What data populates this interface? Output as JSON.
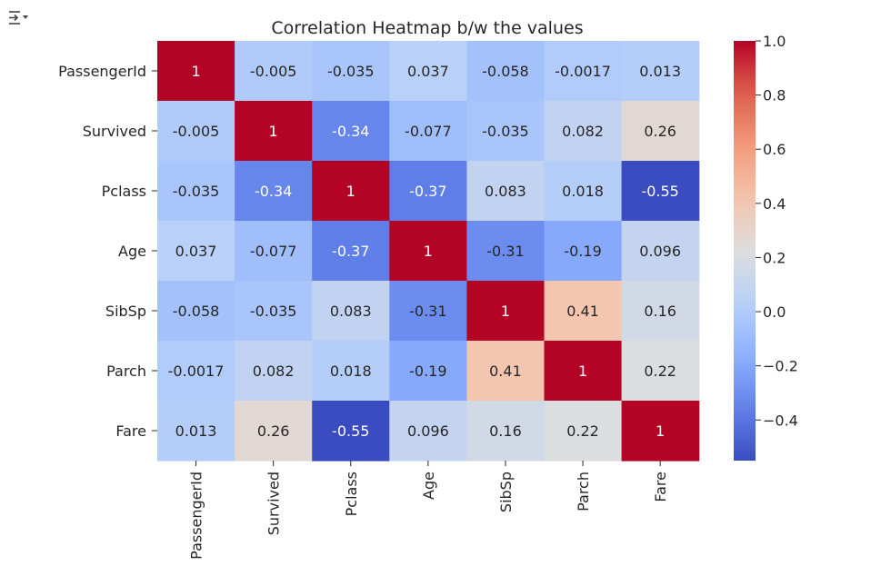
{
  "output_toolbar": {
    "icon": "output-collapse-icon"
  },
  "chart_data": {
    "type": "heatmap",
    "title": "Correlation Heatmap b/w the values",
    "xlabel": "",
    "ylabel": "",
    "rows": [
      "PassengerId",
      "Survived",
      "Pclass",
      "Age",
      "SibSp",
      "Parch",
      "Fare"
    ],
    "columns": [
      "PassengerId",
      "Survived",
      "Pclass",
      "Age",
      "SibSp",
      "Parch",
      "Fare"
    ],
    "values": [
      [
        1,
        -0.005,
        -0.035,
        0.037,
        -0.058,
        -0.0017,
        0.013
      ],
      [
        -0.005,
        1,
        -0.34,
        -0.077,
        -0.035,
        0.082,
        0.26
      ],
      [
        -0.035,
        -0.34,
        1,
        -0.37,
        0.083,
        0.018,
        -0.55
      ],
      [
        0.037,
        -0.077,
        -0.37,
        1,
        -0.31,
        -0.19,
        0.096
      ],
      [
        -0.058,
        -0.035,
        0.083,
        -0.31,
        1,
        0.41,
        0.16
      ],
      [
        -0.0017,
        0.082,
        0.018,
        -0.19,
        0.41,
        1,
        0.22
      ],
      [
        0.013,
        0.26,
        -0.55,
        0.096,
        0.16,
        0.22,
        1
      ]
    ],
    "annotations": [
      [
        "1",
        "-0.005",
        "-0.035",
        "0.037",
        "-0.058",
        "-0.0017",
        "0.013"
      ],
      [
        "-0.005",
        "1",
        "-0.34",
        "-0.077",
        "-0.035",
        "0.082",
        "0.26"
      ],
      [
        "-0.035",
        "-0.34",
        "1",
        "-0.37",
        "0.083",
        "0.018",
        "-0.55"
      ],
      [
        "0.037",
        "-0.077",
        "-0.37",
        "1",
        "-0.31",
        "-0.19",
        "0.096"
      ],
      [
        "-0.058",
        "-0.035",
        "0.083",
        "-0.31",
        "1",
        "0.41",
        "0.16"
      ],
      [
        "-0.0017",
        "0.082",
        "0.018",
        "-0.19",
        "0.41",
        "1",
        "0.22"
      ],
      [
        "0.013",
        "0.26",
        "-0.55",
        "0.096",
        "0.16",
        "0.22",
        "1"
      ]
    ],
    "colormap": "coolwarm",
    "color_range": [
      -0.55,
      1
    ],
    "colorbar": {
      "ticks": [
        -0.4,
        -0.2,
        0.0,
        0.2,
        0.4,
        0.6,
        0.8,
        1.0
      ],
      "tick_labels": [
        "−0.4",
        "−0.2",
        "0.0",
        "0.2",
        "0.4",
        "0.6",
        "0.8",
        "1.0"
      ],
      "placement": "right"
    },
    "grid": false
  }
}
